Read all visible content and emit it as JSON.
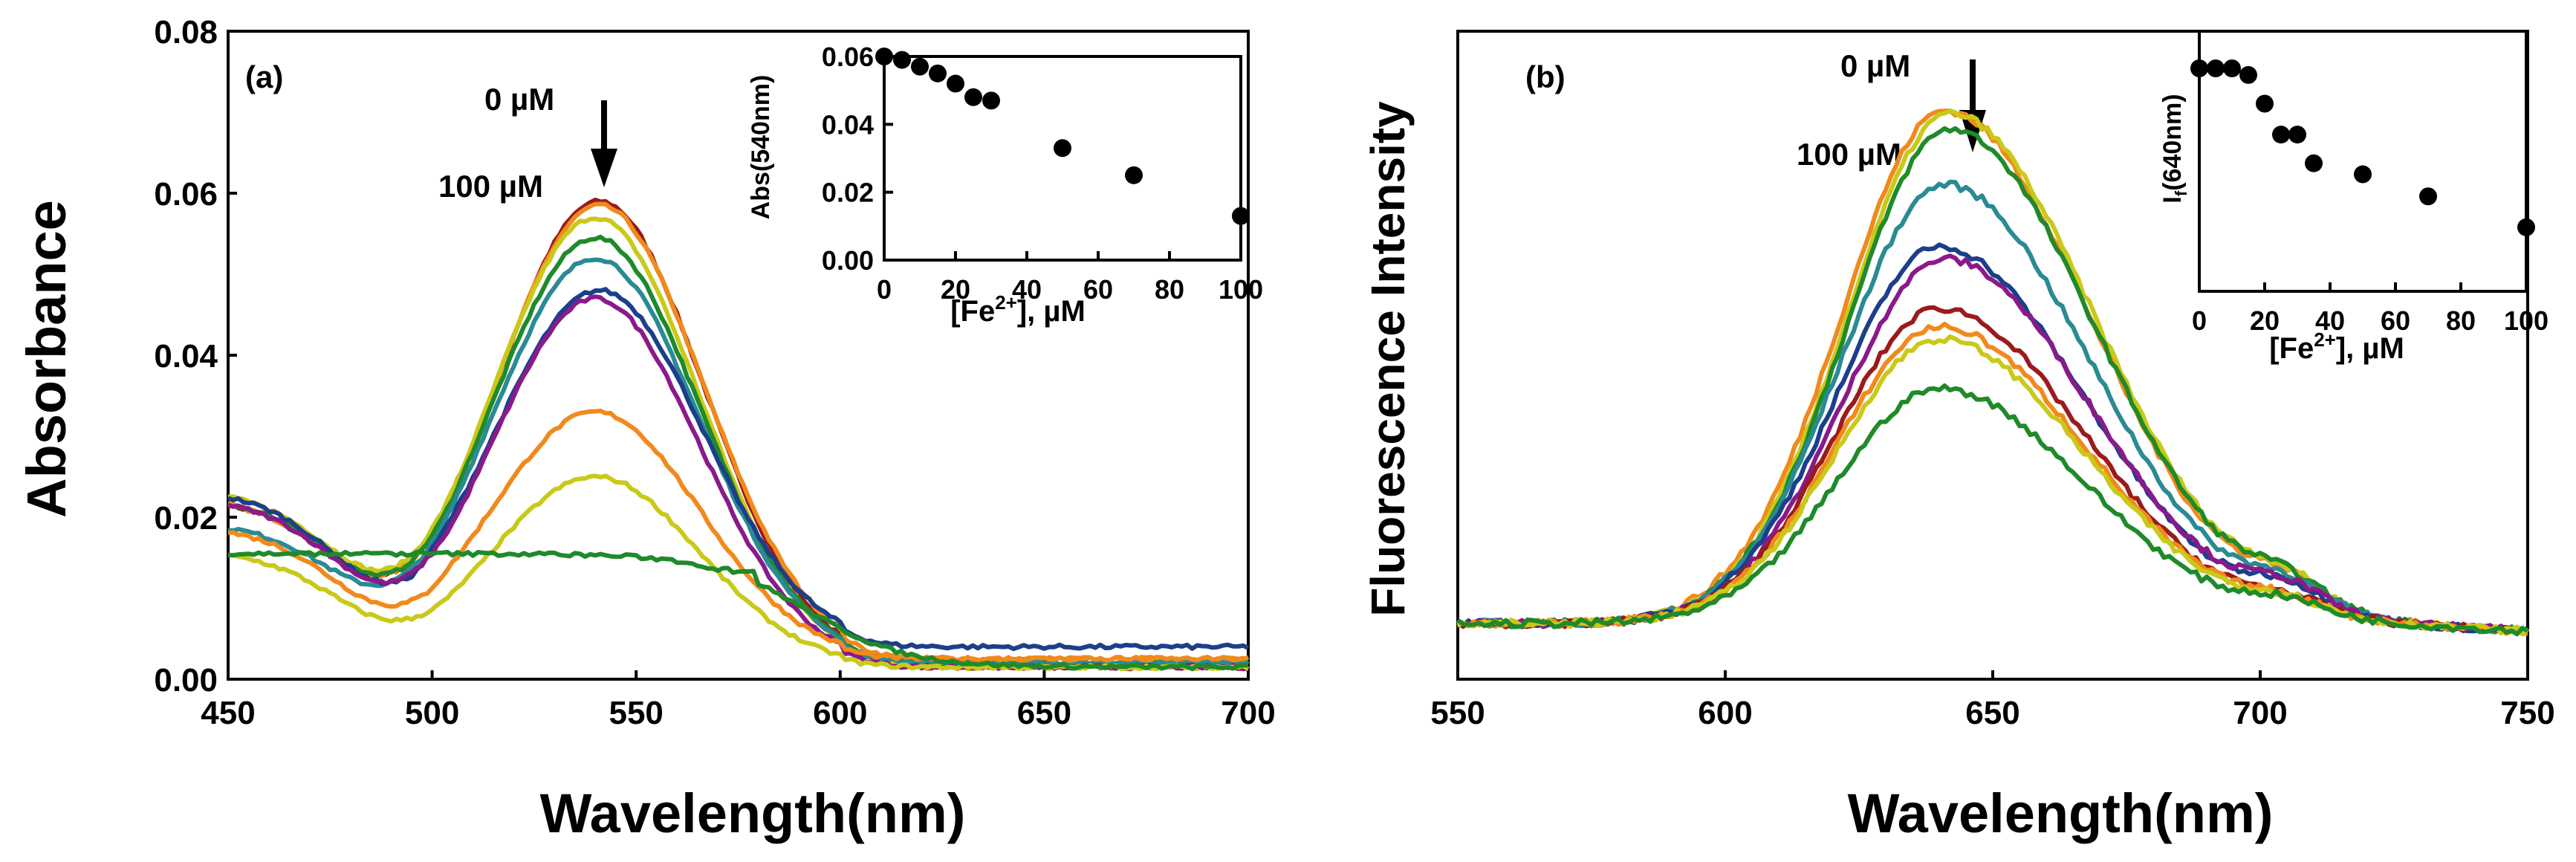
{
  "chart_data": [
    {
      "panel_label": "(a)",
      "type": "line",
      "xlabel": "Wavelength(nm)",
      "ylabel": "Absorbance",
      "xlim": [
        450,
        700
      ],
      "ylim": [
        0,
        0.08
      ],
      "xticks": [
        "450",
        "500",
        "550",
        "600",
        "650",
        "700"
      ],
      "yticks": [
        "0.00",
        "0.02",
        "0.04",
        "0.06",
        "0.08"
      ],
      "annotations": {
        "top": "0 µM",
        "bottom": "100 µM"
      },
      "grid": false,
      "series": [
        {
          "color": "#9a1b1b",
          "baseline": 0.0225,
          "peak": 0.059,
          "center": 541,
          "end": 0.0015
        },
        {
          "color": "#f08a1c",
          "baseline": 0.0225,
          "peak": 0.0585,
          "center": 541,
          "end": 0.0025
        },
        {
          "color": "#c9c91a",
          "baseline": 0.0235,
          "peak": 0.057,
          "center": 540,
          "end": 0.0015
        },
        {
          "color": "#1f8a2a",
          "baseline": 0.0225,
          "peak": 0.0545,
          "center": 540,
          "end": 0.002
        },
        {
          "color": "#2a8a95",
          "baseline": 0.0195,
          "peak": 0.052,
          "center": 540,
          "end": 0.002
        },
        {
          "color": "#1c3f8a",
          "baseline": 0.0235,
          "peak": 0.048,
          "center": 541,
          "end": 0.004
        },
        {
          "color": "#8a1a8a",
          "baseline": 0.0225,
          "peak": 0.047,
          "center": 540,
          "end": 0.0015
        },
        {
          "color": "#f08a1c",
          "baseline": 0.019,
          "peak": 0.033,
          "center": 540,
          "end": 0.0025
        },
        {
          "color": "#c9c91a",
          "baseline": 0.016,
          "peak": 0.025,
          "center": 540,
          "end": 0.0015
        },
        {
          "color": "#1f8a2a",
          "baseline": 0.0155,
          "peak": 0.0135,
          "center": 525,
          "end": 0.0015
        }
      ],
      "inset": {
        "type": "scatter",
        "xlabel": "[Fe2+], µM",
        "ylabel": "Abs(540nm)",
        "xlim": [
          0,
          100
        ],
        "ylim": [
          0,
          0.06
        ],
        "xticks": [
          "0",
          "20",
          "40",
          "60",
          "80",
          "100"
        ],
        "yticks": [
          "0.00",
          "0.02",
          "0.04",
          "0.06"
        ],
        "x": [
          0,
          5,
          10,
          15,
          20,
          25,
          30,
          50,
          70,
          100
        ],
        "y": [
          0.06,
          0.059,
          0.057,
          0.055,
          0.052,
          0.048,
          0.047,
          0.033,
          0.025,
          0.013
        ]
      }
    },
    {
      "panel_label": "(b)",
      "type": "line",
      "xlabel": "Wavelength(nm)",
      "ylabel": "Fluorescence Intensity",
      "xlim": [
        550,
        750
      ],
      "xticks": [
        "550",
        "600",
        "650",
        "700",
        "750"
      ],
      "annotations": {
        "top": "0 µM",
        "bottom": "100 µM"
      },
      "grid": false,
      "series": [
        {
          "color": "#f08a1c",
          "peak": 0.92,
          "center": 641
        },
        {
          "color": "#c9c91a",
          "peak": 0.915,
          "center": 642
        },
        {
          "color": "#1f8a2a",
          "peak": 0.89,
          "center": 642
        },
        {
          "color": "#2a8a95",
          "peak": 0.8,
          "center": 641
        },
        {
          "color": "#1c3f8a",
          "peak": 0.7,
          "center": 640
        },
        {
          "color": "#8a1a8a",
          "peak": 0.68,
          "center": 641
        },
        {
          "color": "#9a1b1b",
          "peak": 0.6,
          "center": 640
        },
        {
          "color": "#f08a1c",
          "peak": 0.57,
          "center": 640
        },
        {
          "color": "#c9c91a",
          "peak": 0.55,
          "center": 640
        },
        {
          "color": "#1f8a2a",
          "peak": 0.47,
          "center": 640
        }
      ],
      "inset": {
        "type": "scatter",
        "xlabel": "[Fe2+], µM",
        "ylabel": "If(640nm)",
        "xlim": [
          0,
          100
        ],
        "xticks": [
          "0",
          "20",
          "40",
          "60",
          "80",
          "100"
        ],
        "x": [
          0,
          5,
          10,
          15,
          20,
          25,
          30,
          35,
          50,
          70,
          100
        ],
        "y": [
          1.0,
          1.0,
          1.0,
          0.97,
          0.84,
          0.7,
          0.7,
          0.57,
          0.52,
          0.42,
          0.28
        ]
      }
    }
  ]
}
